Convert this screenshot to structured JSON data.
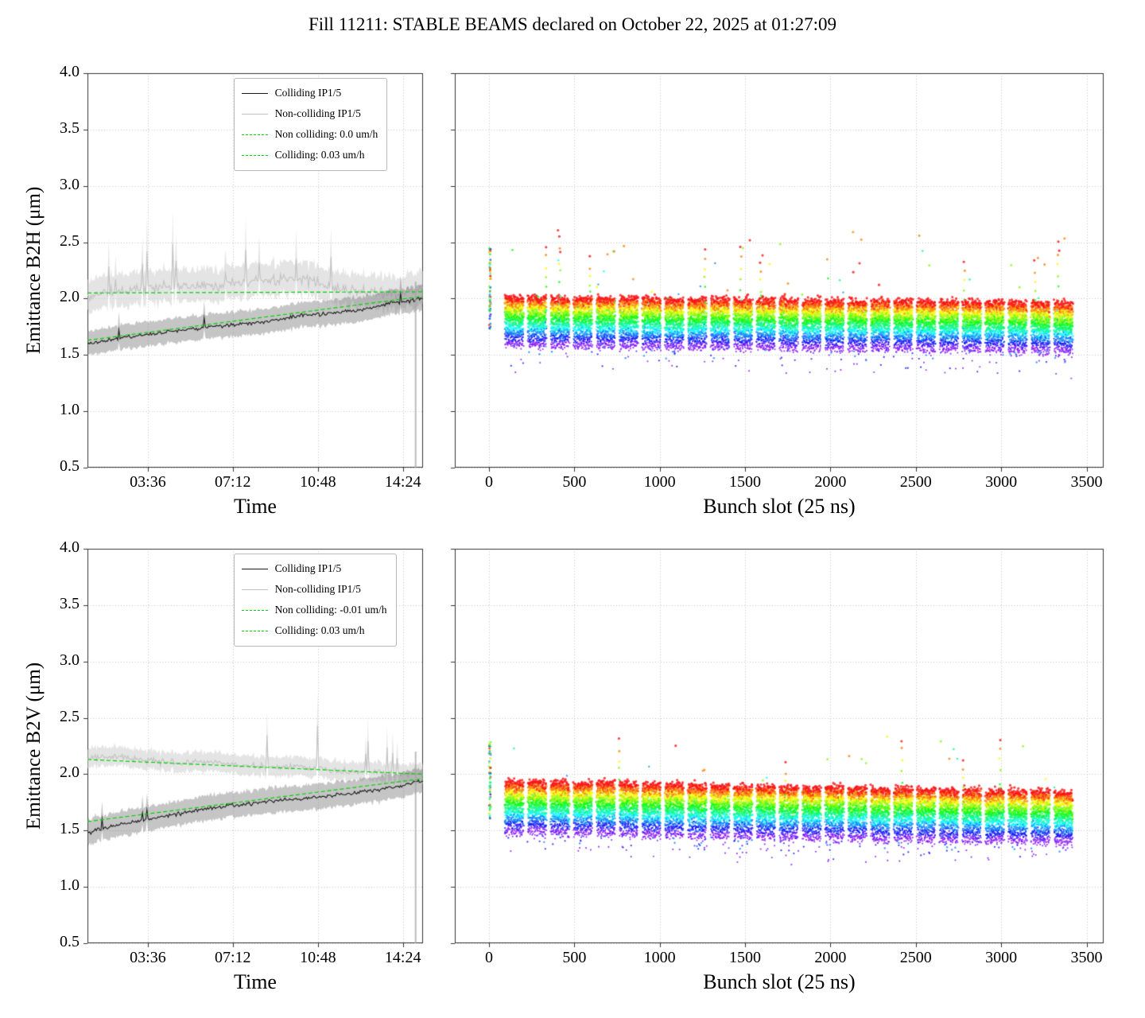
{
  "title": "Fill 11211: STABLE BEAMS declared on October 22, 2025 at 01:27:09",
  "colors": {
    "colliding_line": "#1a1a1a",
    "colliding_band": "rgba(110,110,110,0.40)",
    "noncolliding_line": "#c2c2c2",
    "noncolliding_band": "rgba(205,205,205,0.55)",
    "fit_line": "#00d400",
    "grid": "#c0c0c0",
    "axis": "#333333",
    "end_artifact": "rgba(165,165,165,0.75)"
  },
  "chart_data": [
    {
      "id": "b2h-time",
      "type": "line",
      "xlabel": "Time",
      "ylabel": "Emittance B2H (μm)",
      "ylim": [
        0.5,
        4.0
      ],
      "yticks": [
        0.5,
        1.0,
        1.5,
        2.0,
        2.5,
        3.0,
        3.5,
        4.0
      ],
      "show_ytick_labels": true,
      "xticks": [
        {
          "f": 0.18,
          "label": "03:36"
        },
        {
          "f": 0.433,
          "label": "07:12"
        },
        {
          "f": 0.687,
          "label": "10:48"
        },
        {
          "f": 0.94,
          "label": "14:24"
        }
      ],
      "grid": true,
      "legend": [
        {
          "label": "Colliding IP1/5",
          "color": "#1a1a1a",
          "dash": false
        },
        {
          "label": "Non-colliding IP1/5",
          "color": "#c2c2c2",
          "dash": false
        },
        {
          "label": "Non colliding: 0.0 um/h",
          "color": "#00d400",
          "dash": true
        },
        {
          "label": "Colliding: 0.03 um/h",
          "color": "#00d400",
          "dash": true
        }
      ],
      "series": [
        {
          "name": "Non-colliding IP1/5",
          "role": "noncolliding",
          "anchors": [
            2.02,
            2.06,
            2.1,
            2.12,
            2.1,
            2.14,
            2.16,
            2.18,
            2.1,
            2.06,
            2.04,
            2.08
          ],
          "noise": 0.07,
          "band": 0.17,
          "spike_prob": 0.03,
          "spike_amp": 0.25
        },
        {
          "name": "Colliding IP1/5",
          "role": "colliding",
          "anchors": [
            1.6,
            1.65,
            1.68,
            1.72,
            1.75,
            1.77,
            1.8,
            1.85,
            1.87,
            1.9,
            1.96,
            2.0
          ],
          "noise": 0.025,
          "band": 0.13,
          "spike_prob": 0.01,
          "spike_amp": 0.08
        }
      ],
      "fits": [
        {
          "label": "Non colliding: 0.0 um/h",
          "y0": 2.05,
          "y1": 2.06
        },
        {
          "label": "Colliding: 0.03 um/h",
          "y0": 1.63,
          "y1": 2.02
        }
      ],
      "end_artifact": {
        "f": 0.978,
        "y_top": 2.15
      },
      "seed": 11
    },
    {
      "id": "b2h-bunch",
      "type": "scatter",
      "xlabel": "Bunch slot (25 ns)",
      "ylabel": "",
      "ylim": [
        0.5,
        4.0
      ],
      "yticks": [
        0.5,
        1.0,
        1.5,
        2.0,
        2.5,
        3.0,
        3.5,
        4.0
      ],
      "show_ytick_labels": false,
      "xlim": [
        -200,
        3600
      ],
      "xticks_values": [
        0,
        500,
        1000,
        1500,
        2000,
        2500,
        3000,
        3500
      ],
      "grid": true,
      "trains": {
        "first": 95,
        "count": 25,
        "spacing": 134,
        "length": 108,
        "slot_step": 2
      },
      "injection_column": {
        "slot": 4,
        "n": 60,
        "ymin": 1.72,
        "ymax": 2.45
      },
      "y_model": {
        "base": 1.6,
        "growth": 0.4,
        "x_trend": -0.06,
        "slot_jitter": 0.05,
        "point_noise": 0.045,
        "time_samples": 10,
        "outlier_prob": 0.005,
        "outlier_max": 0.55,
        "low_tail_prob": 0.035,
        "low_tail": 0.18,
        "hot_slot_prob": 0.012,
        "hot_slot_amp": 0.45
      },
      "colormap": "rainbow",
      "seed": 7
    },
    {
      "id": "b2v-time",
      "type": "line",
      "xlabel": "Time",
      "ylabel": "Emittance B2V (μm)",
      "ylim": [
        0.5,
        4.0
      ],
      "yticks": [
        0.5,
        1.0,
        1.5,
        2.0,
        2.5,
        3.0,
        3.5,
        4.0
      ],
      "show_ytick_labels": true,
      "xticks": [
        {
          "f": 0.18,
          "label": "03:36"
        },
        {
          "f": 0.433,
          "label": "07:12"
        },
        {
          "f": 0.687,
          "label": "10:48"
        },
        {
          "f": 0.94,
          "label": "14:24"
        }
      ],
      "grid": true,
      "legend": [
        {
          "label": "Colliding IP1/5",
          "color": "#1a1a1a",
          "dash": false
        },
        {
          "label": "Non-colliding IP1/5",
          "color": "#c2c2c2",
          "dash": false
        },
        {
          "label": "Non colliding: -0.01 um/h",
          "color": "#00d400",
          "dash": true
        },
        {
          "label": "Colliding: 0.03 um/h",
          "color": "#00d400",
          "dash": true
        }
      ],
      "series": [
        {
          "name": "Non-colliding IP1/5",
          "role": "noncolliding",
          "anchors": [
            2.14,
            2.16,
            2.12,
            2.1,
            2.11,
            2.08,
            2.06,
            2.07,
            2.04,
            2.02,
            2.0,
            2.0
          ],
          "noise": 0.045,
          "band": 0.1,
          "spike_prob": 0.02,
          "spike_amp": 0.3
        },
        {
          "name": "Colliding IP1/5",
          "role": "colliding",
          "anchors": [
            1.48,
            1.55,
            1.6,
            1.65,
            1.7,
            1.73,
            1.76,
            1.78,
            1.81,
            1.84,
            1.88,
            1.94
          ],
          "noise": 0.025,
          "band": 0.13,
          "spike_prob": 0.01,
          "spike_amp": 0.08
        }
      ],
      "fits": [
        {
          "label": "Non colliding: -0.01 um/h",
          "y0": 2.13,
          "y1": 2.0
        },
        {
          "label": "Colliding: 0.03 um/h",
          "y0": 1.58,
          "y1": 1.96
        }
      ],
      "end_artifact": {
        "f": 0.978,
        "y_top": 2.2
      },
      "seed": 23
    },
    {
      "id": "b2v-bunch",
      "type": "scatter",
      "xlabel": "Bunch slot (25 ns)",
      "ylabel": "",
      "ylim": [
        0.5,
        4.0
      ],
      "yticks": [
        0.5,
        1.0,
        1.5,
        2.0,
        2.5,
        3.0,
        3.5,
        4.0
      ],
      "show_ytick_labels": false,
      "xlim": [
        -200,
        3600
      ],
      "xticks_values": [
        0,
        500,
        1000,
        1500,
        2000,
        2500,
        3000,
        3500
      ],
      "grid": true,
      "trains": {
        "first": 95,
        "count": 25,
        "spacing": 134,
        "length": 108,
        "slot_step": 2
      },
      "injection_column": {
        "slot": 4,
        "n": 55,
        "ymin": 1.6,
        "ymax": 2.3
      },
      "y_model": {
        "base": 1.5,
        "growth": 0.42,
        "x_trend": -0.1,
        "slot_jitter": 0.05,
        "point_noise": 0.045,
        "time_samples": 10,
        "outlier_prob": 0.002,
        "outlier_max": 0.45,
        "low_tail_prob": 0.05,
        "low_tail": 0.16,
        "hot_slot_prob": 0.008,
        "hot_slot_amp": 0.4
      },
      "colormap": "rainbow",
      "seed": 31
    }
  ]
}
